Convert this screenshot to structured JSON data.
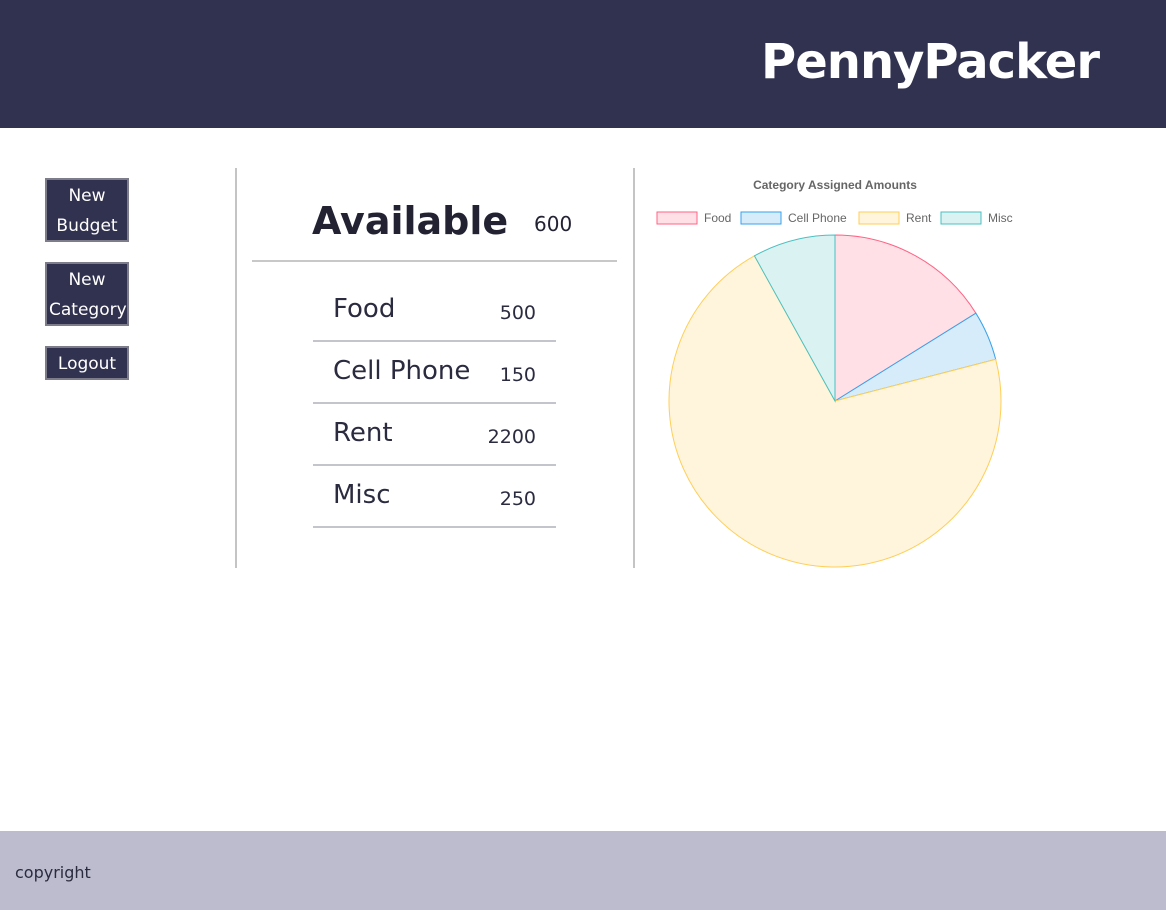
{
  "app": {
    "title": "PennyPacker"
  },
  "sidebar": {
    "new_budget_line1": "New",
    "new_budget_line2": "Budget",
    "new_category_line1": "New",
    "new_category_line2": "Category",
    "logout": "Logout"
  },
  "summary": {
    "available_label": "Available",
    "available_value": "600"
  },
  "categories": [
    {
      "name": "Food",
      "value": "500"
    },
    {
      "name": "Cell Phone",
      "value": "150"
    },
    {
      "name": "Rent",
      "value": "2200"
    },
    {
      "name": "Misc",
      "value": "250"
    }
  ],
  "chart_data": {
    "type": "pie",
    "title": "Category Assigned Amounts",
    "categories": [
      "Food",
      "Cell Phone",
      "Rent",
      "Misc"
    ],
    "values": [
      500,
      150,
      2200,
      250
    ],
    "legend": "top",
    "colors": {
      "fills": [
        "#ffe0e6",
        "#d7ecfb",
        "#fff5dd",
        "#dbf2f2"
      ],
      "borders": [
        "#ff6384",
        "#36a2eb",
        "#ffce56",
        "#4bc0c0"
      ]
    }
  },
  "footer": {
    "copyright": "copyright"
  },
  "theme": {
    "header_bg": "#31324f",
    "footer_bg": "#bcbcce"
  }
}
